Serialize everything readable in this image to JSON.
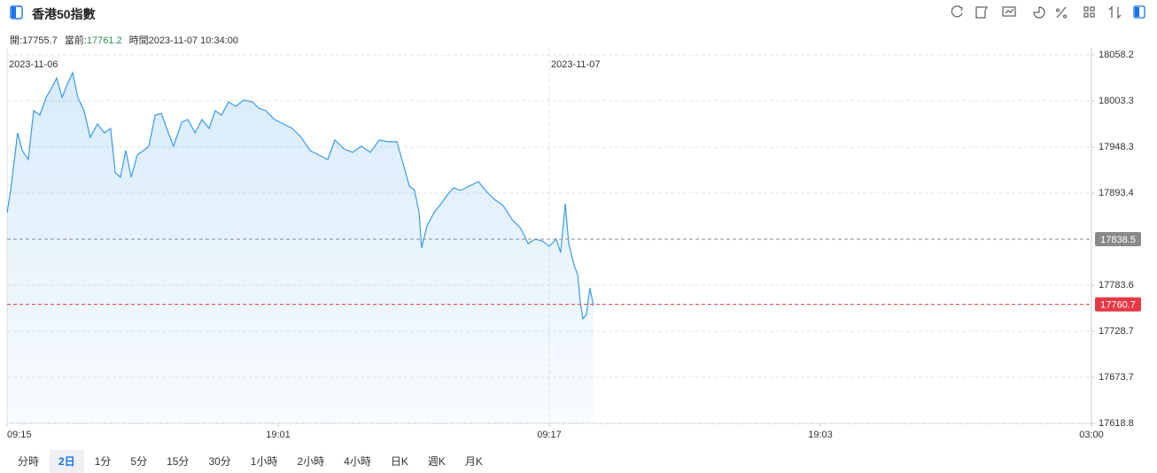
{
  "header": {
    "title": "香港50指數"
  },
  "info": [
    {
      "label": "開:",
      "value": "17755.7"
    },
    {
      "label": "當前:",
      "value": "17761.2"
    },
    {
      "label": "時間",
      "value": "2023-11-07 10:34:00"
    }
  ],
  "chart_data": {
    "type": "line",
    "x": [
      0,
      0.013,
      0.039,
      0.056,
      0.078,
      0.098,
      0.121,
      0.144,
      0.163,
      0.183,
      0.203,
      0.222,
      0.242,
      0.261,
      0.284,
      0.307,
      0.333,
      0.359,
      0.382,
      0.399,
      0.418,
      0.438,
      0.458,
      0.48,
      0.503,
      0.523,
      0.546,
      0.569,
      0.595,
      0.614,
      0.644,
      0.667,
      0.693,
      0.719,
      0.745,
      0.768,
      0.791,
      0.817,
      0.843,
      0.873,
      0.905,
      0.928,
      0.954,
      0.987,
      1.02,
      1.052,
      1.085,
      1.118,
      1.15,
      1.183,
      1.209,
      1.242,
      1.275,
      1.307,
      1.34,
      1.373,
      1.405,
      1.438,
      1.461,
      1.484,
      1.503,
      1.52,
      1.529,
      1.549,
      1.575,
      1.601,
      1.624,
      1.647,
      1.673,
      1.706,
      1.739,
      1.765,
      1.797,
      1.83,
      1.863,
      1.895,
      1.922,
      1.948,
      1.974,
      2.0,
      2.026,
      2.042,
      2.059,
      2.072,
      2.092,
      2.105,
      2.114,
      2.124,
      2.137,
      2.15,
      2.163
    ],
    "series": [
      {
        "color": "#3a9be8",
        "values": [
          17870.2,
          17896.6,
          17965.2,
          17944.1,
          17933.5,
          17991.7,
          17986.4,
          18007.5,
          18018.1,
          18030.7,
          18007.5,
          18023.3,
          18037.1,
          18007.5,
          17991.7,
          17960.0,
          17975.8,
          17965.2,
          17970.5,
          17917.7,
          17912.4,
          17944.1,
          17912.4,
          17938.8,
          17944.1,
          17949.4,
          17986.4,
          17988.5,
          17965.2,
          17949.4,
          17977.9,
          17981.1,
          17965.2,
          17981.1,
          17970.5,
          17991.7,
          17986.4,
          18002.2,
          17996.9,
          18004.3,
          18002.2,
          17994.8,
          17991.7,
          17981.1,
          17975.8,
          17970.5,
          17960.0,
          17944.1,
          17938.8,
          17933.5,
          17956.8,
          17946.2,
          17941.9,
          17949.4,
          17941.9,
          17956.8,
          17954.7,
          17954.7,
          17928.3,
          17901.9,
          17896.6,
          17870.2,
          17827.9,
          17854.4,
          17870.2,
          17880.7,
          17891.3,
          17899.8,
          17896.6,
          17901.9,
          17907.2,
          17896.6,
          17886.0,
          17878.6,
          17861.7,
          17851.2,
          17833.2,
          17838.5,
          17836.4,
          17830.0,
          17838.5,
          17822.6,
          17880.7,
          17833.2,
          17806.8,
          17796.2,
          17764.5,
          17743.4,
          17748.7,
          17780.4,
          17759.3
        ]
      }
    ],
    "xlim": [
      0,
      4
    ],
    "xticks": [
      {
        "value": 0,
        "label": "09:15"
      },
      {
        "value": 1,
        "label": "19:01"
      },
      {
        "value": 2,
        "label": "09:17"
      },
      {
        "value": 3,
        "label": "19:03"
      },
      {
        "value": 4,
        "label": "03:00"
      }
    ],
    "ylim": [
      17618.8,
      18058.2
    ],
    "yticks": [
      17618.8,
      17673.7,
      17728.7,
      17783.6,
      17893.4,
      17948.3,
      18003.3,
      18058.2
    ],
    "grid": true,
    "reference_lines": [
      {
        "value": 17838.5,
        "color": "#8a8a8a"
      },
      {
        "value": 17760.7,
        "color": "#e53945"
      }
    ],
    "annotations": [
      {
        "text": "2023-11-06",
        "x": 0
      },
      {
        "text": "2023-11-07",
        "x": 2
      }
    ]
  },
  "periods": [
    "分時",
    "2日",
    "1分",
    "5分",
    "15分",
    "30分",
    "1小時",
    "2小時",
    "4小時",
    "日K",
    "週K",
    "月K"
  ],
  "active_period": 1
}
